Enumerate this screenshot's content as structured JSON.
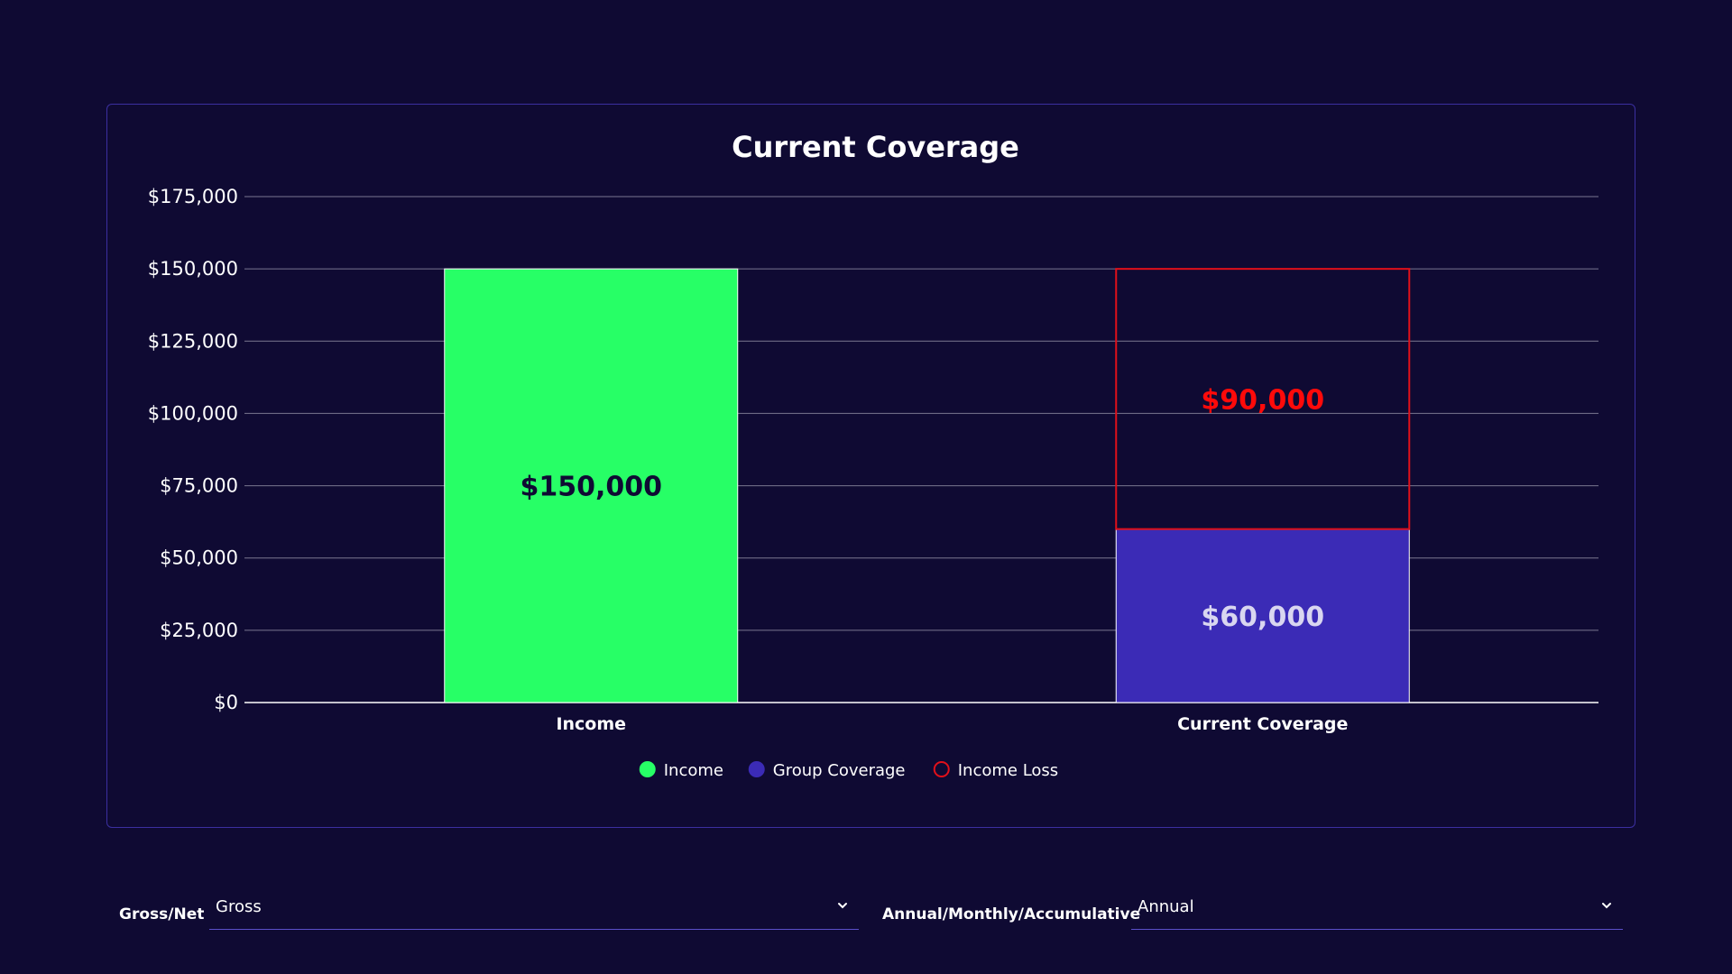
{
  "chart_data": {
    "type": "bar",
    "stacked": true,
    "title": "Current Coverage",
    "categories": [
      "Income",
      "Current Coverage"
    ],
    "ylim": [
      0,
      175000
    ],
    "yticks": [
      0,
      25000,
      50000,
      75000,
      100000,
      125000,
      150000,
      175000
    ],
    "ytick_labels": [
      "$0",
      "$25,000",
      "$50,000",
      "$75,000",
      "$100,000",
      "$125,000",
      "$150,000",
      "$175,000"
    ],
    "series": [
      {
        "name": "Income",
        "color": "#27ff66",
        "label_color": "#0f0a33",
        "values": [
          150000,
          0
        ],
        "labels": [
          "$150,000",
          ""
        ],
        "outline": false
      },
      {
        "name": "Group Coverage",
        "color": "#3b2bb6",
        "label_color": "#d9d6f0",
        "values": [
          0,
          60000
        ],
        "labels": [
          "",
          "$60,000"
        ],
        "outline": false
      },
      {
        "name": "Income Loss",
        "color": "#e0101a",
        "label_color": "#ff0a0a",
        "values": [
          0,
          90000
        ],
        "labels": [
          "",
          "$90,000"
        ],
        "outline": true
      }
    ],
    "legend": [
      {
        "label": "Income",
        "color": "#27ff66",
        "style": "filled"
      },
      {
        "label": "Group Coverage",
        "color": "#3b2bb6",
        "style": "filled"
      },
      {
        "label": "Income Loss",
        "color": "#e0101a",
        "style": "outline"
      }
    ],
    "legend_position": "bottom",
    "grid": true
  },
  "controls": {
    "gross_net": {
      "label": "Gross/Net",
      "value": "Gross"
    },
    "period": {
      "label": "Annual/Monthly/Accumulative",
      "value": "Annual"
    }
  }
}
